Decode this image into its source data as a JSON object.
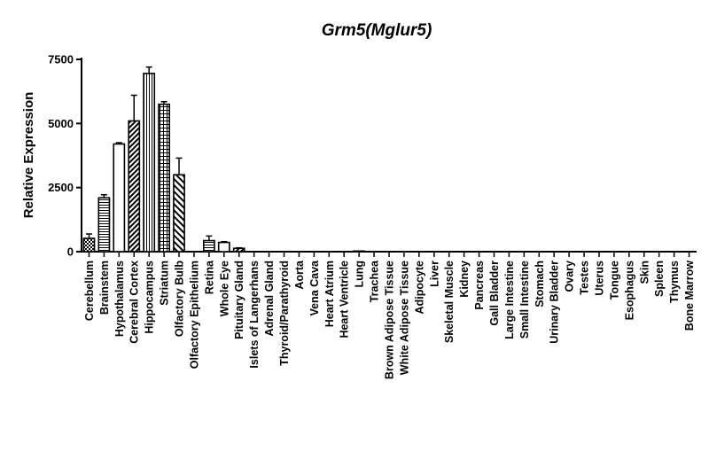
{
  "chart_data": {
    "type": "bar",
    "title": "Grm5(Mglur5)",
    "xlabel": "",
    "ylabel": "Relative Expression",
    "ylim": [
      0,
      7500
    ],
    "yticks": [
      "0",
      "2500",
      "5000",
      "7500"
    ],
    "ytick_values": [
      0,
      2500,
      5000,
      7500
    ],
    "grid": false,
    "legend": "none",
    "categories": [
      "Cerebellum",
      "Brainstem",
      "Hypothalamus",
      "Cerebral Cortex",
      "Hippocampus",
      "Striatum",
      "Olfactory Bulb",
      "Olfactory Epithelium",
      "Retina",
      "Whole Eye",
      "Pituitary Gland",
      "Islets of Langerhans",
      "Adrenal Gland",
      "Thyroid/Parathyroid",
      "Aorta",
      "Vena Cava",
      "Heart Atrium",
      "Heart Ventricle",
      "Lung",
      "Trachea",
      "Brown Adipose Tissue",
      "White Adipose Tissue",
      "Adipocyte",
      "Liver",
      "Skeletal Muscle",
      "Kidney",
      "Pancreas",
      "Gall Bladder",
      "Large Intestine",
      "Small Intestine",
      "Stomach",
      "Urinary Bladder",
      "Ovary",
      "Testes",
      "Uterus",
      "Tongue",
      "Esophagus",
      "Skin",
      "Spleen",
      "Thymus",
      "Bone Marrow"
    ],
    "values": [
      520,
      2100,
      4200,
      5100,
      6950,
      5750,
      3000,
      0,
      430,
      360,
      130,
      0,
      0,
      0,
      0,
      0,
      0,
      0,
      25,
      0,
      0,
      0,
      0,
      0,
      0,
      0,
      0,
      0,
      0,
      0,
      0,
      0,
      0,
      0,
      0,
      0,
      0,
      0,
      0,
      0,
      0
    ],
    "errors": [
      170,
      120,
      50,
      1000,
      250,
      100,
      650,
      0,
      180,
      30,
      20,
      0,
      0,
      0,
      0,
      0,
      0,
      0,
      0,
      0,
      0,
      0,
      0,
      0,
      0,
      0,
      0,
      0,
      0,
      0,
      0,
      0,
      0,
      0,
      0,
      0,
      0,
      0,
      0,
      0,
      0
    ]
  }
}
